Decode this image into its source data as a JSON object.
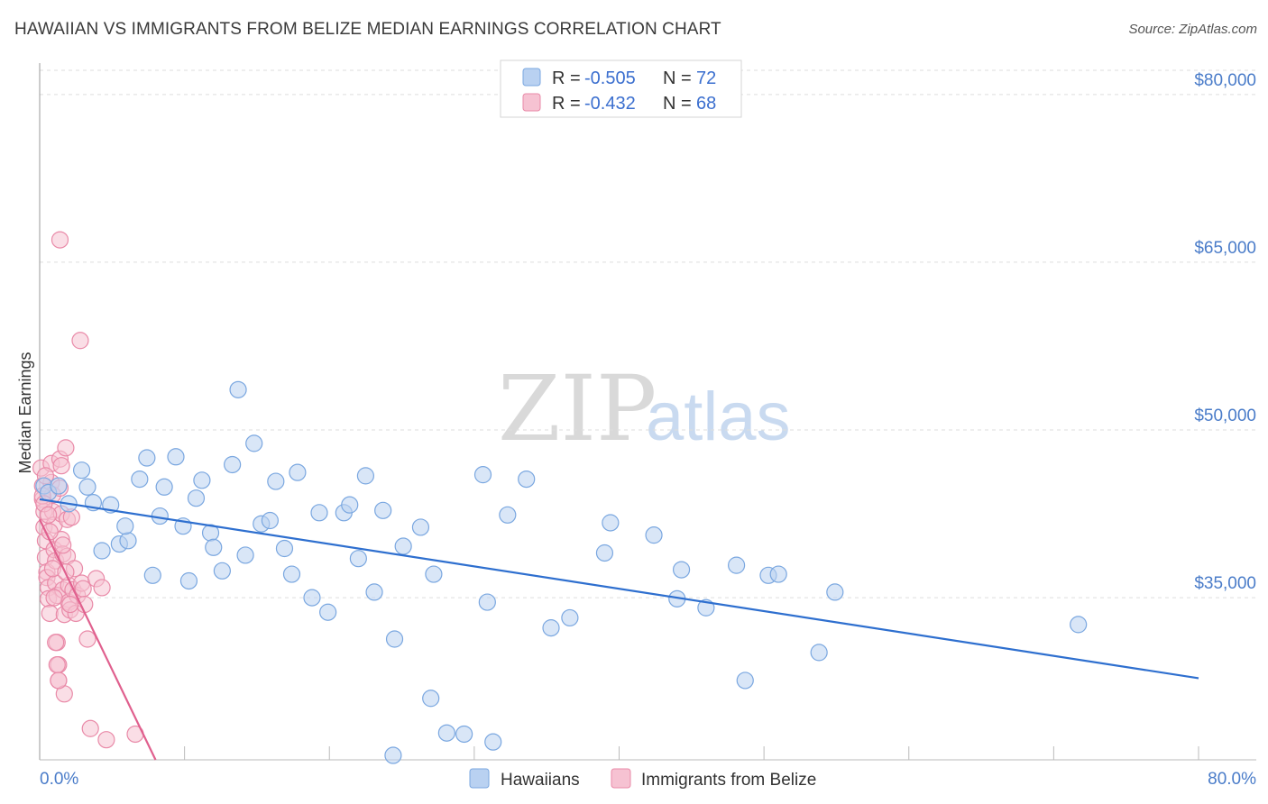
{
  "header": {
    "title": "HAWAIIAN VS IMMIGRANTS FROM BELIZE MEDIAN EARNINGS CORRELATION CHART",
    "source": "Source: ZipAtlas.com"
  },
  "legend_top": [
    {
      "r_label": "R = ",
      "r_value": "-0.505",
      "n_label": "N = ",
      "n_value": "72"
    },
    {
      "r_label": "R = ",
      "r_value": "-0.432",
      "n_label": "N = ",
      "n_value": "68"
    }
  ],
  "watermark": {
    "zip": "ZIP",
    "atlas": "atlas"
  },
  "colors": {
    "hawaiians": "#7aa7e0",
    "hawaiians_fill": "#b9d1f1",
    "belize": "#e98aa8",
    "belize_fill": "#f6c2d2",
    "hawaiians_line": "#2e6fcf",
    "belize_line": "#e0608e",
    "grid": "#dddddd",
    "axis_text": "#4a7cc9"
  },
  "chart_data": {
    "type": "scatter",
    "title": "HAWAIIAN VS IMMIGRANTS FROM BELIZE MEDIAN EARNINGS CORRELATION CHART",
    "xlabel": "",
    "ylabel": "Median Earnings",
    "xlim": [
      0,
      80
    ],
    "ylim": [
      20500,
      82000
    ],
    "x_tick_labels": [
      "0.0%",
      "80.0%"
    ],
    "y_ticks": [
      35000,
      50000,
      65000,
      80000
    ],
    "y_tick_labels": [
      "$35,000",
      "$50,000",
      "$65,000",
      "$80,000"
    ],
    "grid": true,
    "legend_position": "top-center",
    "series": [
      {
        "name": "Hawaiians",
        "r": -0.505,
        "n": 72,
        "trend": {
          "x": [
            0,
            80
          ],
          "y": [
            43800,
            27800
          ]
        },
        "points": [
          [
            0.3,
            45000
          ],
          [
            0.6,
            44400
          ],
          [
            1.3,
            45000
          ],
          [
            2.0,
            43400
          ],
          [
            2.9,
            46400
          ],
          [
            3.3,
            44900
          ],
          [
            3.7,
            43500
          ],
          [
            4.3,
            39200
          ],
          [
            4.9,
            43300
          ],
          [
            5.5,
            39800
          ],
          [
            6.1,
            40100
          ],
          [
            5.9,
            41400
          ],
          [
            6.9,
            45600
          ],
          [
            7.4,
            47500
          ],
          [
            7.8,
            37000
          ],
          [
            8.3,
            42300
          ],
          [
            8.6,
            44900
          ],
          [
            9.4,
            47600
          ],
          [
            9.9,
            41400
          ],
          [
            10.3,
            36500
          ],
          [
            10.8,
            43900
          ],
          [
            11.2,
            45500
          ],
          [
            11.8,
            40800
          ],
          [
            12.0,
            39500
          ],
          [
            12.6,
            37400
          ],
          [
            13.3,
            46900
          ],
          [
            13.7,
            53600
          ],
          [
            14.2,
            38800
          ],
          [
            14.8,
            48800
          ],
          [
            15.3,
            41600
          ],
          [
            15.9,
            41900
          ],
          [
            16.3,
            45400
          ],
          [
            16.9,
            39400
          ],
          [
            17.4,
            37100
          ],
          [
            17.8,
            46200
          ],
          [
            18.8,
            35000
          ],
          [
            19.3,
            42600
          ],
          [
            19.9,
            33700
          ],
          [
            21.0,
            42600
          ],
          [
            21.4,
            43300
          ],
          [
            22.0,
            38500
          ],
          [
            22.5,
            45900
          ],
          [
            23.1,
            35500
          ],
          [
            23.7,
            42800
          ],
          [
            24.5,
            31300
          ],
          [
            25.1,
            39600
          ],
          [
            26.3,
            41300
          ],
          [
            27.2,
            37100
          ],
          [
            28.1,
            22900
          ],
          [
            29.3,
            22800
          ],
          [
            30.6,
            46000
          ],
          [
            30.9,
            34600
          ],
          [
            31.3,
            22100
          ],
          [
            32.3,
            42400
          ],
          [
            33.6,
            45600
          ],
          [
            35.3,
            32300
          ],
          [
            36.6,
            33200
          ],
          [
            39.0,
            39000
          ],
          [
            39.4,
            41700
          ],
          [
            42.4,
            40600
          ],
          [
            44.0,
            34900
          ],
          [
            44.3,
            37500
          ],
          [
            46.0,
            34100
          ],
          [
            48.1,
            37900
          ],
          [
            48.7,
            27600
          ],
          [
            50.3,
            37000
          ],
          [
            51.0,
            37100
          ],
          [
            53.8,
            30100
          ],
          [
            54.9,
            35500
          ],
          [
            71.7,
            32600
          ],
          [
            27.0,
            26000
          ],
          [
            24.4,
            20900
          ]
        ]
      },
      {
        "name": "Immigrants from Belize",
        "r": -0.432,
        "n": 68,
        "trend": {
          "x": [
            0,
            8
          ],
          "y": [
            42000,
            20500
          ]
        },
        "points": [
          [
            0.1,
            46600
          ],
          [
            0.2,
            45000
          ],
          [
            0.2,
            43800
          ],
          [
            0.3,
            42700
          ],
          [
            0.3,
            41300
          ],
          [
            0.4,
            40100
          ],
          [
            0.4,
            38600
          ],
          [
            0.5,
            37300
          ],
          [
            0.5,
            36800
          ],
          [
            0.6,
            35900
          ],
          [
            0.6,
            34900
          ],
          [
            0.7,
            33600
          ],
          [
            0.8,
            47000
          ],
          [
            0.8,
            45300
          ],
          [
            0.9,
            44200
          ],
          [
            0.9,
            42700
          ],
          [
            1.0,
            41500
          ],
          [
            1.0,
            39300
          ],
          [
            1.1,
            38300
          ],
          [
            1.1,
            36300
          ],
          [
            1.2,
            35200
          ],
          [
            1.2,
            31000
          ],
          [
            1.3,
            29000
          ],
          [
            1.3,
            27600
          ],
          [
            1.4,
            47400
          ],
          [
            1.4,
            44800
          ],
          [
            1.5,
            42500
          ],
          [
            1.5,
            40200
          ],
          [
            1.6,
            38900
          ],
          [
            1.6,
            35700
          ],
          [
            1.7,
            33500
          ],
          [
            1.7,
            26400
          ],
          [
            1.8,
            48400
          ],
          [
            1.9,
            42000
          ],
          [
            1.9,
            38700
          ],
          [
            2.0,
            36100
          ],
          [
            2.0,
            34600
          ],
          [
            2.1,
            33900
          ],
          [
            2.2,
            42200
          ],
          [
            2.3,
            35700
          ],
          [
            2.4,
            37600
          ],
          [
            2.5,
            33600
          ],
          [
            2.6,
            35200
          ],
          [
            2.8,
            58000
          ],
          [
            2.9,
            36300
          ],
          [
            3.0,
            35800
          ],
          [
            3.1,
            34400
          ],
          [
            3.3,
            31300
          ],
          [
            3.5,
            23300
          ],
          [
            3.9,
            36700
          ],
          [
            4.3,
            35900
          ],
          [
            4.6,
            22300
          ],
          [
            6.6,
            22800
          ],
          [
            1.4,
            67000
          ],
          [
            0.2,
            44100
          ],
          [
            0.3,
            43400
          ],
          [
            0.4,
            45900
          ],
          [
            0.6,
            42400
          ],
          [
            0.7,
            40900
          ],
          [
            0.9,
            37600
          ],
          [
            1.0,
            35000
          ],
          [
            1.1,
            31000
          ],
          [
            1.2,
            29000
          ],
          [
            1.3,
            27600
          ],
          [
            1.5,
            46800
          ],
          [
            1.6,
            39700
          ],
          [
            1.8,
            37300
          ],
          [
            2.1,
            34400
          ]
        ]
      }
    ]
  }
}
